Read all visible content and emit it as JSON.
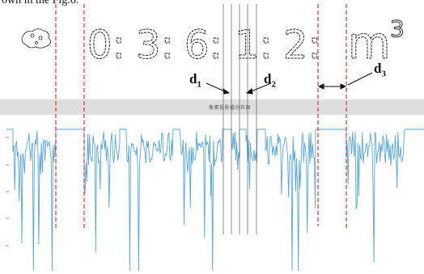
{
  "caption_fragment": "own in the Fig.6.",
  "meter_digits": [
    "0:",
    "3:",
    "6:",
    "1:",
    "2:",
    "m"
  ],
  "meter_superscript": "3",
  "band_label": "像素投影值分布图",
  "gap_labels": [
    {
      "base": "d",
      "sub": "1"
    },
    {
      "base": "d",
      "sub": "2"
    },
    {
      "base": "d",
      "sub": "3"
    }
  ],
  "colors": {
    "signal": "#5aa6d6",
    "separator": "#e03030",
    "guide": "#333333",
    "band": "#dedede"
  }
}
